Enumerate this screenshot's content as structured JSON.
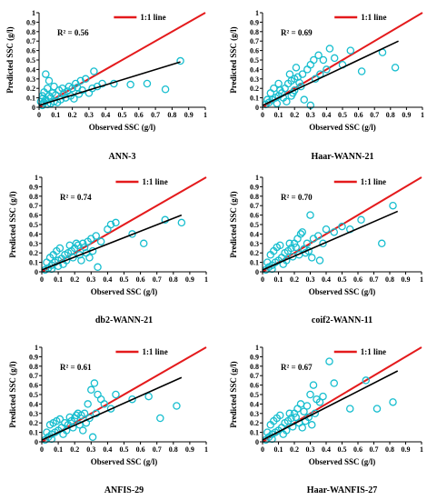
{
  "figure": {
    "legend_label": "1:1 line",
    "colors": {
      "points": "#17BECF",
      "one_to_one": "#E41A1C",
      "fit": "#000000",
      "axes": "#000000"
    }
  },
  "chart_data": [
    {
      "type": "scatter",
      "caption": "ANN-3",
      "r2_text": "R² = 0.56",
      "xlabel": "Observed SSC (g/l)",
      "ylabel": "Predicted SSC (g/l)",
      "xlim": [
        0,
        1
      ],
      "ylim": [
        0,
        1
      ],
      "xticks": [
        "0",
        "0.1",
        "0.2",
        "0.3",
        "0.4",
        "0.5",
        "0.6",
        "0.7",
        "0.8",
        "0.9",
        "1"
      ],
      "yticks": [
        "0",
        "0.1",
        "0.2",
        "0.3",
        "0.4",
        "0.5",
        "0.6",
        "0.7",
        "0.8",
        "0.9",
        "1"
      ],
      "grid": false,
      "legend_position": "top-right",
      "fit_line": {
        "x": [
          0,
          0.85
        ],
        "y": [
          0.02,
          0.48
        ]
      },
      "points": [
        [
          0.02,
          0.02
        ],
        [
          0.03,
          0.05
        ],
        [
          0.05,
          0.03
        ],
        [
          0.04,
          0.08
        ],
        [
          0.06,
          0.12
        ],
        [
          0.07,
          0.1
        ],
        [
          0.08,
          0.15
        ],
        [
          0.1,
          0.13
        ],
        [
          0.12,
          0.18
        ],
        [
          0.14,
          0.2
        ],
        [
          0.05,
          0.2
        ],
        [
          0.03,
          0.16
        ],
        [
          0.02,
          0.12
        ],
        [
          0.09,
          0.22
        ],
        [
          0.15,
          0.15
        ],
        [
          0.18,
          0.22
        ],
        [
          0.2,
          0.2
        ],
        [
          0.22,
          0.25
        ],
        [
          0.25,
          0.28
        ],
        [
          0.28,
          0.3
        ],
        [
          0.32,
          0.2
        ],
        [
          0.35,
          0.22
        ],
        [
          0.38,
          0.25
        ],
        [
          0.33,
          0.38
        ],
        [
          0.45,
          0.25
        ],
        [
          0.55,
          0.24
        ],
        [
          0.65,
          0.25
        ],
        [
          0.76,
          0.19
        ],
        [
          0.85,
          0.49
        ],
        [
          0.04,
          0.35
        ],
        [
          0.06,
          0.28
        ],
        [
          0.11,
          0.05
        ],
        [
          0.13,
          0.08
        ],
        [
          0.16,
          0.1
        ],
        [
          0.19,
          0.12
        ],
        [
          0.21,
          0.09
        ],
        [
          0.24,
          0.14
        ],
        [
          0.26,
          0.18
        ],
        [
          0.3,
          0.15
        ],
        [
          0.01,
          0.06
        ],
        [
          0.02,
          0.09
        ],
        [
          0.07,
          0.04
        ],
        [
          0.09,
          0.06
        ],
        [
          0.17,
          0.17
        ],
        [
          0.23,
          0.21
        ]
      ]
    },
    {
      "type": "scatter",
      "caption": "Haar-WANN-21",
      "r2_text": "R² = 0.69",
      "xlabel": "Observed SSC (g/l)",
      "ylabel": "Predicted SSC (g/l)",
      "xlim": [
        0,
        1
      ],
      "ylim": [
        0,
        1
      ],
      "xticks": [
        "0",
        "0.1",
        "0.2",
        "0.3",
        "0.4",
        "0.5",
        "0.6",
        "0.7",
        "0.8",
        "0.9",
        "1"
      ],
      "yticks": [
        "0",
        "0.1",
        "0.2",
        "0.3",
        "0.4",
        "0.5",
        "0.6",
        "0.7",
        "0.8",
        "0.9",
        "1"
      ],
      "grid": false,
      "legend_position": "top-right",
      "fit_line": {
        "x": [
          0,
          0.85
        ],
        "y": [
          0.02,
          0.7
        ]
      },
      "points": [
        [
          0.02,
          0.03
        ],
        [
          0.04,
          0.05
        ],
        [
          0.06,
          0.08
        ],
        [
          0.08,
          0.1
        ],
        [
          0.1,
          0.12
        ],
        [
          0.12,
          0.15
        ],
        [
          0.14,
          0.2
        ],
        [
          0.16,
          0.25
        ],
        [
          0.18,
          0.28
        ],
        [
          0.2,
          0.3
        ],
        [
          0.22,
          0.32
        ],
        [
          0.25,
          0.35
        ],
        [
          0.28,
          0.4
        ],
        [
          0.3,
          0.45
        ],
        [
          0.32,
          0.5
        ],
        [
          0.35,
          0.55
        ],
        [
          0.38,
          0.5
        ],
        [
          0.42,
          0.62
        ],
        [
          0.45,
          0.52
        ],
        [
          0.5,
          0.45
        ],
        [
          0.55,
          0.6
        ],
        [
          0.62,
          0.38
        ],
        [
          0.75,
          0.58
        ],
        [
          0.83,
          0.42
        ],
        [
          0.05,
          0.15
        ],
        [
          0.07,
          0.2
        ],
        [
          0.1,
          0.25
        ],
        [
          0.13,
          0.1
        ],
        [
          0.15,
          0.06
        ],
        [
          0.18,
          0.12
        ],
        [
          0.2,
          0.18
        ],
        [
          0.24,
          0.22
        ],
        [
          0.26,
          0.08
        ],
        [
          0.3,
          0.02
        ],
        [
          0.33,
          0.3
        ],
        [
          0.36,
          0.35
        ],
        [
          0.4,
          0.4
        ],
        [
          0.03,
          0.08
        ],
        [
          0.09,
          0.04
        ],
        [
          0.11,
          0.18
        ],
        [
          0.17,
          0.35
        ],
        [
          0.21,
          0.42
        ],
        [
          0.19,
          0.15
        ],
        [
          0.23,
          0.26
        ]
      ]
    },
    {
      "type": "scatter",
      "caption": "db2-WANN-21",
      "r2_text": "R² = 0.74",
      "xlabel": "Observed SSC (g/l)",
      "ylabel": "Predicted SSC (g/l)",
      "xlim": [
        0,
        1
      ],
      "ylim": [
        0,
        1
      ],
      "xticks": [
        "0",
        "0.1",
        "0.2",
        "0.3",
        "0.4",
        "0.5",
        "0.6",
        "0.7",
        "0.8",
        "0.9",
        "1"
      ],
      "yticks": [
        "0",
        "0.1",
        "0.2",
        "0.3",
        "0.4",
        "0.5",
        "0.6",
        "0.7",
        "0.8",
        "0.9",
        "1"
      ],
      "grid": false,
      "legend_position": "top-right",
      "fit_line": {
        "x": [
          0,
          0.85
        ],
        "y": [
          0.02,
          0.6
        ]
      },
      "points": [
        [
          0.02,
          0.02
        ],
        [
          0.04,
          0.04
        ],
        [
          0.06,
          0.07
        ],
        [
          0.08,
          0.1
        ],
        [
          0.1,
          0.12
        ],
        [
          0.12,
          0.14
        ],
        [
          0.14,
          0.18
        ],
        [
          0.16,
          0.2
        ],
        [
          0.18,
          0.22
        ],
        [
          0.2,
          0.25
        ],
        [
          0.22,
          0.28
        ],
        [
          0.25,
          0.3
        ],
        [
          0.28,
          0.32
        ],
        [
          0.3,
          0.35
        ],
        [
          0.33,
          0.38
        ],
        [
          0.36,
          0.32
        ],
        [
          0.4,
          0.45
        ],
        [
          0.42,
          0.5
        ],
        [
          0.45,
          0.52
        ],
        [
          0.55,
          0.4
        ],
        [
          0.62,
          0.3
        ],
        [
          0.75,
          0.55
        ],
        [
          0.85,
          0.52
        ],
        [
          0.05,
          0.15
        ],
        [
          0.07,
          0.18
        ],
        [
          0.09,
          0.22
        ],
        [
          0.11,
          0.25
        ],
        [
          0.13,
          0.08
        ],
        [
          0.15,
          0.12
        ],
        [
          0.19,
          0.15
        ],
        [
          0.23,
          0.18
        ],
        [
          0.27,
          0.2
        ],
        [
          0.31,
          0.22
        ],
        [
          0.34,
          0.05
        ],
        [
          0.03,
          0.1
        ],
        [
          0.06,
          0.03
        ],
        [
          0.1,
          0.06
        ],
        [
          0.17,
          0.28
        ],
        [
          0.21,
          0.3
        ],
        [
          0.24,
          0.12
        ],
        [
          0.26,
          0.26
        ],
        [
          0.29,
          0.15
        ]
      ]
    },
    {
      "type": "scatter",
      "caption": "coif2-WANN-11",
      "r2_text": "R² = 0.70",
      "xlabel": "Observed SSC (g/l)",
      "ylabel": "Predicted SSC (g/l)",
      "xlim": [
        0,
        1
      ],
      "ylim": [
        0,
        1
      ],
      "xticks": [
        "0",
        "0.1",
        "0.2",
        "0.3",
        "0.4",
        "0.5",
        "0.6",
        "0.7",
        "0.8",
        "0.9",
        "1"
      ],
      "yticks": [
        "0",
        "0.1",
        "0.2",
        "0.3",
        "0.4",
        "0.5",
        "0.6",
        "0.7",
        "0.8",
        "0.9",
        "1"
      ],
      "grid": false,
      "legend_position": "top-right",
      "fit_line": {
        "x": [
          0,
          0.85
        ],
        "y": [
          0.02,
          0.64
        ]
      },
      "points": [
        [
          0.02,
          0.02
        ],
        [
          0.04,
          0.05
        ],
        [
          0.06,
          0.07
        ],
        [
          0.08,
          0.1
        ],
        [
          0.1,
          0.12
        ],
        [
          0.12,
          0.15
        ],
        [
          0.14,
          0.2
        ],
        [
          0.16,
          0.22
        ],
        [
          0.18,
          0.25
        ],
        [
          0.2,
          0.3
        ],
        [
          0.22,
          0.35
        ],
        [
          0.24,
          0.4
        ],
        [
          0.25,
          0.42
        ],
        [
          0.28,
          0.3
        ],
        [
          0.3,
          0.6
        ],
        [
          0.32,
          0.35
        ],
        [
          0.35,
          0.38
        ],
        [
          0.38,
          0.3
        ],
        [
          0.4,
          0.45
        ],
        [
          0.45,
          0.42
        ],
        [
          0.5,
          0.48
        ],
        [
          0.55,
          0.45
        ],
        [
          0.62,
          0.55
        ],
        [
          0.75,
          0.3
        ],
        [
          0.82,
          0.7
        ],
        [
          0.05,
          0.18
        ],
        [
          0.07,
          0.22
        ],
        [
          0.09,
          0.26
        ],
        [
          0.11,
          0.28
        ],
        [
          0.13,
          0.08
        ],
        [
          0.15,
          0.12
        ],
        [
          0.19,
          0.16
        ],
        [
          0.23,
          0.18
        ],
        [
          0.27,
          0.2
        ],
        [
          0.31,
          0.15
        ],
        [
          0.36,
          0.12
        ],
        [
          0.03,
          0.1
        ],
        [
          0.06,
          0.03
        ],
        [
          0.17,
          0.3
        ],
        [
          0.21,
          0.26
        ],
        [
          0.26,
          0.24
        ],
        [
          0.29,
          0.22
        ]
      ]
    },
    {
      "type": "scatter",
      "caption": "ANFIS-29",
      "r2_text": "R² = 0.61",
      "xlabel": "Observed SSC (g/l)",
      "ylabel": "Predicted SSC (g/l)",
      "xlim": [
        0,
        1
      ],
      "ylim": [
        0,
        1
      ],
      "xticks": [
        "0",
        "0.1",
        "0.2",
        "0.3",
        "0.4",
        "0.5",
        "0.6",
        "0.7",
        "0.8",
        "0.9",
        "1"
      ],
      "yticks": [
        "0",
        "0.1",
        "0.2",
        "0.3",
        "0.4",
        "0.5",
        "0.6",
        "0.7",
        "0.8",
        "0.9",
        "1"
      ],
      "grid": false,
      "legend_position": "top-right",
      "fit_line": {
        "x": [
          0,
          0.85
        ],
        "y": [
          0.02,
          0.68
        ]
      },
      "points": [
        [
          0.02,
          0.02
        ],
        [
          0.04,
          0.05
        ],
        [
          0.06,
          0.08
        ],
        [
          0.08,
          0.1
        ],
        [
          0.1,
          0.12
        ],
        [
          0.12,
          0.15
        ],
        [
          0.14,
          0.2
        ],
        [
          0.16,
          0.18
        ],
        [
          0.18,
          0.22
        ],
        [
          0.2,
          0.25
        ],
        [
          0.22,
          0.3
        ],
        [
          0.24,
          0.28
        ],
        [
          0.26,
          0.3
        ],
        [
          0.28,
          0.4
        ],
        [
          0.3,
          0.55
        ],
        [
          0.32,
          0.62
        ],
        [
          0.34,
          0.5
        ],
        [
          0.36,
          0.45
        ],
        [
          0.38,
          0.4
        ],
        [
          0.42,
          0.35
        ],
        [
          0.45,
          0.5
        ],
        [
          0.55,
          0.45
        ],
        [
          0.65,
          0.48
        ],
        [
          0.72,
          0.25
        ],
        [
          0.82,
          0.38
        ],
        [
          0.05,
          0.18
        ],
        [
          0.07,
          0.2
        ],
        [
          0.09,
          0.22
        ],
        [
          0.11,
          0.24
        ],
        [
          0.13,
          0.08
        ],
        [
          0.15,
          0.12
        ],
        [
          0.19,
          0.15
        ],
        [
          0.23,
          0.18
        ],
        [
          0.27,
          0.2
        ],
        [
          0.31,
          0.05
        ],
        [
          0.03,
          0.1
        ],
        [
          0.06,
          0.03
        ],
        [
          0.17,
          0.26
        ],
        [
          0.21,
          0.28
        ],
        [
          0.25,
          0.12
        ],
        [
          0.29,
          0.25
        ],
        [
          0.33,
          0.3
        ]
      ]
    },
    {
      "type": "scatter",
      "caption": "Haar-WANFIS-27",
      "r2_text": "R² = 0.67",
      "xlabel": "Observed SSC (g/l)",
      "ylabel": "Predicted SSC (g/l)",
      "xlim": [
        0,
        1
      ],
      "ylim": [
        0,
        1
      ],
      "xticks": [
        "0",
        "0.1",
        "0.2",
        "0.3",
        "0.4",
        "0.5",
        "0.6",
        "0.7",
        "0.8",
        "0.9",
        "1"
      ],
      "yticks": [
        "0",
        "0.1",
        "0.2",
        "0.3",
        "0.4",
        "0.5",
        "0.6",
        "0.7",
        "0.8",
        "0.9",
        "1"
      ],
      "grid": false,
      "legend_position": "top-right",
      "fit_line": {
        "x": [
          0,
          0.85
        ],
        "y": [
          0.02,
          0.75
        ]
      },
      "points": [
        [
          0.02,
          0.02
        ],
        [
          0.04,
          0.05
        ],
        [
          0.06,
          0.08
        ],
        [
          0.08,
          0.1
        ],
        [
          0.1,
          0.12
        ],
        [
          0.12,
          0.15
        ],
        [
          0.14,
          0.2
        ],
        [
          0.16,
          0.22
        ],
        [
          0.18,
          0.25
        ],
        [
          0.2,
          0.3
        ],
        [
          0.22,
          0.35
        ],
        [
          0.24,
          0.4
        ],
        [
          0.26,
          0.32
        ],
        [
          0.28,
          0.38
        ],
        [
          0.3,
          0.5
        ],
        [
          0.32,
          0.6
        ],
        [
          0.34,
          0.45
        ],
        [
          0.36,
          0.42
        ],
        [
          0.38,
          0.48
        ],
        [
          0.42,
          0.85
        ],
        [
          0.45,
          0.62
        ],
        [
          0.55,
          0.35
        ],
        [
          0.65,
          0.65
        ],
        [
          0.72,
          0.35
        ],
        [
          0.82,
          0.42
        ],
        [
          0.05,
          0.18
        ],
        [
          0.07,
          0.22
        ],
        [
          0.09,
          0.25
        ],
        [
          0.11,
          0.28
        ],
        [
          0.13,
          0.08
        ],
        [
          0.15,
          0.12
        ],
        [
          0.19,
          0.16
        ],
        [
          0.23,
          0.2
        ],
        [
          0.27,
          0.22
        ],
        [
          0.31,
          0.18
        ],
        [
          0.03,
          0.1
        ],
        [
          0.06,
          0.03
        ],
        [
          0.17,
          0.3
        ],
        [
          0.21,
          0.26
        ],
        [
          0.25,
          0.15
        ],
        [
          0.29,
          0.26
        ],
        [
          0.33,
          0.3
        ]
      ]
    }
  ]
}
